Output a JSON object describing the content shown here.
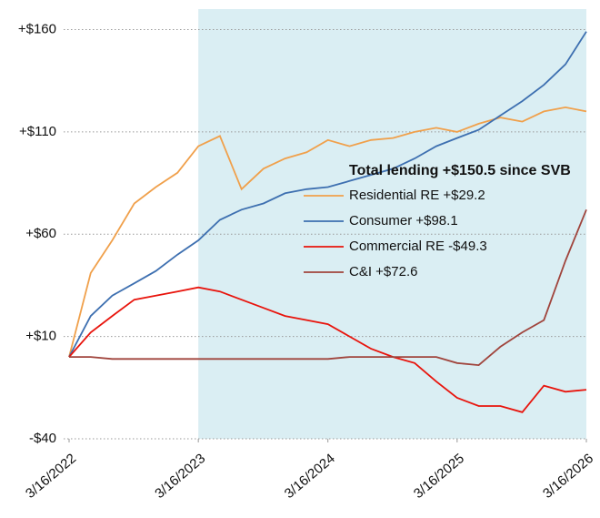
{
  "chart_data": {
    "type": "line",
    "legend_title": "Total lending +$150.5 since SVB",
    "x": [
      "3/16/2022",
      "5/16/2022",
      "7/16/2022",
      "9/16/2022",
      "11/16/2022",
      "1/16/2023",
      "3/16/2023",
      "5/16/2023",
      "7/16/2023",
      "9/16/2023",
      "11/16/2023",
      "1/16/2024",
      "3/16/2024",
      "5/16/2024",
      "7/16/2024",
      "9/16/2024",
      "11/16/2024",
      "1/16/2025",
      "3/16/2025",
      "5/16/2025",
      "7/16/2025",
      "9/16/2025",
      "11/16/2025",
      "1/16/2026",
      "3/16/2026"
    ],
    "series": [
      {
        "name": "Residential RE +$29.2",
        "color": "#f0a04b",
        "values": [
          0,
          41,
          57,
          75,
          83,
          90,
          103,
          108,
          82,
          92,
          97,
          100,
          106,
          103,
          106,
          107,
          110,
          112,
          110,
          114,
          117,
          115,
          120,
          122,
          120
        ]
      },
      {
        "name": "Consumer +$98.1",
        "color": "#3d6fb0",
        "values": [
          0,
          20,
          30,
          36,
          42,
          50,
          57,
          67,
          72,
          75,
          80,
          82,
          83,
          86,
          89,
          92,
          97,
          103,
          107,
          111,
          118,
          125,
          133,
          143,
          159
        ]
      },
      {
        "name": "Commercial RE -$49.3",
        "color": "#e8140c",
        "values": [
          0,
          12,
          20,
          28,
          30,
          32,
          34,
          32,
          28,
          24,
          20,
          18,
          16,
          10,
          4,
          0,
          -3,
          -12,
          -20,
          -24,
          -24,
          -27,
          -14,
          -17,
          -16
        ]
      },
      {
        "name": "C&I +$72.6",
        "color": "#a0443c",
        "values": [
          0,
          0,
          -1,
          -1,
          -1,
          -1,
          -1,
          -1,
          -1,
          -1,
          -1,
          -1,
          -1,
          0,
          0,
          0,
          0,
          0,
          -3,
          -4,
          5,
          12,
          18,
          47,
          72
        ]
      }
    ],
    "xlim": [
      "3/16/2022",
      "3/16/2026"
    ],
    "xticks": [
      "3/16/2022",
      "3/16/2023",
      "3/16/2024",
      "3/16/2025",
      "3/16/2026"
    ],
    "ylim": [
      -40,
      170
    ],
    "yticks": [
      {
        "value": -40,
        "label": "-$40"
      },
      {
        "value": 10,
        "label": "+$10"
      },
      {
        "value": 60,
        "label": "+$60"
      },
      {
        "value": 110,
        "label": "+$110"
      },
      {
        "value": 160,
        "label": "+$160"
      }
    ],
    "grid": true,
    "shaded_region": {
      "from": "3/16/2023",
      "to": "3/16/2026",
      "color": "#daeef3"
    }
  }
}
